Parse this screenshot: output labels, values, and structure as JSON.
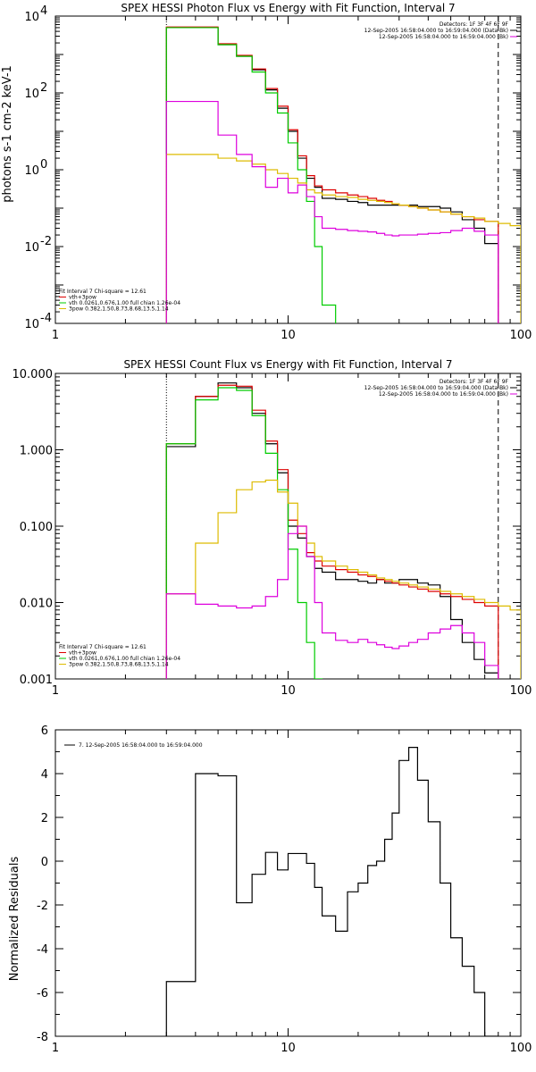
{
  "chart_data": [
    {
      "type": "line",
      "title": "SPEX HESSI Photon Flux vs Energy with Fit Function, Interval 7",
      "ylabel": "photons s-1 cm-2 keV-1",
      "xlabel": "",
      "xscale": "log",
      "yscale": "log",
      "xlim": [
        1,
        100
      ],
      "ylim": [
        0.0001,
        10000
      ],
      "xticks": [
        "1",
        "10",
        "100"
      ],
      "yticks": [
        {
          "base": "10",
          "exp": "-4"
        },
        {
          "base": "10",
          "exp": "-2"
        },
        {
          "base": "10",
          "exp": "0"
        },
        {
          "base": "10",
          "exp": "2"
        },
        {
          "base": "10",
          "exp": "4"
        }
      ],
      "legend_top": [
        "Detectors: 1F 3F 4F 6F 9F",
        "12-Sep-2005 16:58:04.000 to 16:59:04.000 (Data-Bk)",
        "12-Sep-2005 16:58:04.000 to 16:59:04.000 (Bk)"
      ],
      "legend_bottom": [
        "Fit Interval  7    Chi-square = 12.61",
        "vth+3pow",
        "vth 0.0261,0.676,1.00  full chian 1.26e-04",
        "3pow 0.382,1.50,8.73,8.68,13.5,1.14"
      ],
      "vlines": [
        3,
        80
      ],
      "series": [
        {
          "name": "Data-Bk",
          "color": "#000000",
          "edges": [
            3,
            4,
            5,
            6,
            7,
            8,
            9,
            10,
            11,
            12,
            13,
            14,
            16,
            18,
            20,
            22,
            24,
            26,
            28,
            30,
            33,
            36,
            40,
            45,
            50,
            56,
            63,
            70,
            80
          ],
          "values": [
            5000,
            5000,
            1800,
            900,
            400,
            120,
            40,
            10,
            2,
            0.6,
            0.35,
            0.18,
            0.17,
            0.15,
            0.14,
            0.12,
            0.12,
            0.12,
            0.12,
            0.12,
            0.12,
            0.11,
            0.11,
            0.1,
            0.08,
            0.05,
            0.03,
            0.012
          ]
        },
        {
          "name": "vth+3pow",
          "color": "#dd0000",
          "edges": [
            3,
            4,
            5,
            6,
            7,
            8,
            9,
            10,
            11,
            12,
            13,
            14,
            16,
            18,
            20,
            22,
            24,
            26,
            28,
            30,
            33,
            36,
            40,
            45,
            50,
            56,
            63,
            70,
            80
          ],
          "values": [
            5200,
            5200,
            1900,
            950,
            420,
            130,
            45,
            11,
            2.3,
            0.7,
            0.38,
            0.3,
            0.25,
            0.22,
            0.2,
            0.18,
            0.16,
            0.15,
            0.13,
            0.12,
            0.11,
            0.1,
            0.09,
            0.08,
            0.07,
            0.06,
            0.05,
            0.045
          ]
        },
        {
          "name": "vth",
          "color": "#00cc00",
          "edges": [
            3,
            4,
            5,
            6,
            7,
            8,
            9,
            10,
            11,
            12,
            13,
            14,
            16
          ],
          "values": [
            5000,
            5000,
            1800,
            900,
            350,
            100,
            30,
            5,
            1,
            0.15,
            0.01,
            0.0003
          ]
        },
        {
          "name": "3pow",
          "color": "#ddbb00",
          "edges": [
            3,
            4,
            5,
            6,
            7,
            8,
            9,
            10,
            11,
            12,
            13,
            14,
            16,
            18,
            20,
            22,
            24,
            26,
            28,
            30,
            33,
            36,
            40,
            45,
            50,
            56,
            63,
            70,
            80,
            90,
            100
          ],
          "values": [
            2.5,
            2.5,
            2.0,
            1.7,
            1.4,
            1.0,
            0.8,
            0.6,
            0.45,
            0.3,
            0.25,
            0.22,
            0.2,
            0.19,
            0.17,
            0.16,
            0.15,
            0.14,
            0.13,
            0.12,
            0.11,
            0.1,
            0.09,
            0.08,
            0.07,
            0.06,
            0.055,
            0.045,
            0.04,
            0.035
          ]
        },
        {
          "name": "Bk",
          "color": "#dd00dd",
          "edges": [
            3,
            4,
            5,
            6,
            7,
            8,
            9,
            10,
            11,
            12,
            13,
            14,
            16,
            18,
            20,
            22,
            24,
            26,
            28,
            30,
            33,
            36,
            40,
            45,
            50,
            56,
            63,
            70,
            80
          ],
          "values": [
            60,
            60,
            8,
            2.5,
            1.2,
            0.35,
            0.6,
            0.25,
            0.4,
            0.2,
            0.06,
            0.03,
            0.028,
            0.026,
            0.025,
            0.024,
            0.022,
            0.02,
            0.019,
            0.02,
            0.02,
            0.021,
            0.022,
            0.023,
            0.026,
            0.03,
            0.025,
            0.02
          ]
        }
      ]
    },
    {
      "type": "line",
      "title": "SPEX HESSI Count Flux vs Energy with Fit Function, Interval 7",
      "ylabel": "",
      "xlabel": "",
      "xscale": "log",
      "yscale": "log",
      "xlim": [
        1,
        100
      ],
      "ylim": [
        0.001,
        10
      ],
      "xticks": [
        "1",
        "10",
        "100"
      ],
      "yticks": [
        "0.001",
        "0.010",
        "0.100",
        "1.000",
        "10.000"
      ],
      "legend_top": [
        "Detectors: 1F 3F 4F 6F 9F",
        "12-Sep-2005 16:58:04.000 to 16:59:04.000 (Data-Bk)",
        "12-Sep-2005 16:58:04.000 to 16:59:04.000 (Bk)"
      ],
      "legend_bottom": [
        "Fit Interval  7    Chi-square = 12.61",
        "vth+3pow",
        "vth 0.0261,0.676,1.00  full chian 1.26e-04",
        "3pow 0.382,1.50,8.73,8.68,13.5,1.14"
      ],
      "vlines": [
        3,
        80
      ],
      "series": [
        {
          "name": "Data-Bk",
          "color": "#000000",
          "edges": [
            3,
            4,
            5,
            6,
            7,
            8,
            9,
            10,
            11,
            12,
            13,
            14,
            16,
            18,
            20,
            22,
            24,
            26,
            28,
            30,
            33,
            36,
            40,
            45,
            50,
            56,
            63,
            70,
            80
          ],
          "values": [
            1.1,
            5.0,
            7.5,
            6.5,
            3.0,
            1.2,
            0.5,
            0.1,
            0.07,
            0.04,
            0.028,
            0.025,
            0.02,
            0.02,
            0.019,
            0.018,
            0.02,
            0.018,
            0.018,
            0.02,
            0.02,
            0.018,
            0.017,
            0.012,
            0.006,
            0.003,
            0.0018,
            0.0012
          ]
        },
        {
          "name": "vth+3pow",
          "color": "#dd0000",
          "edges": [
            3,
            4,
            5,
            6,
            7,
            8,
            9,
            10,
            11,
            12,
            13,
            14,
            16,
            18,
            20,
            22,
            24,
            26,
            28,
            30,
            33,
            36,
            40,
            45,
            50,
            56,
            63,
            70,
            80
          ],
          "values": [
            1.2,
            5.0,
            7.0,
            6.8,
            3.3,
            1.3,
            0.55,
            0.12,
            0.08,
            0.045,
            0.035,
            0.03,
            0.027,
            0.025,
            0.023,
            0.022,
            0.02,
            0.019,
            0.018,
            0.017,
            0.016,
            0.015,
            0.014,
            0.013,
            0.012,
            0.011,
            0.01,
            0.009
          ]
        },
        {
          "name": "vth",
          "color": "#00cc00",
          "edges": [
            3,
            4,
            5,
            6,
            7,
            8,
            9,
            10,
            11,
            12,
            13,
            14
          ],
          "values": [
            1.2,
            4.5,
            6.5,
            6.0,
            2.8,
            0.9,
            0.3,
            0.05,
            0.01,
            0.003,
            0.001
          ]
        },
        {
          "name": "3pow",
          "color": "#ddbb00",
          "edges": [
            3,
            4,
            5,
            6,
            7,
            8,
            9,
            10,
            11,
            12,
            13,
            14,
            16,
            18,
            20,
            22,
            24,
            26,
            28,
            30,
            33,
            36,
            40,
            45,
            50,
            56,
            63,
            70,
            80,
            90,
            100
          ],
          "values": [
            0.013,
            0.06,
            0.15,
            0.3,
            0.38,
            0.4,
            0.28,
            0.2,
            0.1,
            0.06,
            0.04,
            0.035,
            0.03,
            0.027,
            0.025,
            0.023,
            0.021,
            0.02,
            0.019,
            0.018,
            0.017,
            0.016,
            0.015,
            0.014,
            0.013,
            0.012,
            0.011,
            0.01,
            0.009,
            0.008
          ]
        },
        {
          "name": "Bk",
          "color": "#dd00dd",
          "edges": [
            3,
            4,
            5,
            6,
            7,
            8,
            9,
            10,
            11,
            12,
            13,
            14,
            16,
            18,
            20,
            22,
            24,
            26,
            28,
            30,
            33,
            36,
            40,
            45,
            50,
            56,
            63,
            70,
            80
          ],
          "values": [
            0.013,
            0.0095,
            0.009,
            0.0085,
            0.009,
            0.012,
            0.02,
            0.08,
            0.1,
            0.04,
            0.01,
            0.004,
            0.0032,
            0.003,
            0.0033,
            0.003,
            0.0028,
            0.0026,
            0.0025,
            0.0027,
            0.003,
            0.0033,
            0.004,
            0.0045,
            0.005,
            0.004,
            0.003,
            0.0015
          ]
        }
      ]
    },
    {
      "type": "line",
      "title": "",
      "ylabel": "Normalized Residuals",
      "xlabel": "",
      "xscale": "log",
      "yscale": "linear",
      "xlim": [
        1,
        100
      ],
      "ylim": [
        -8,
        6
      ],
      "xticks": [
        "1",
        "10",
        "100"
      ],
      "yticks": [
        "-8",
        "-6",
        "-4",
        "-2",
        "0",
        "2",
        "4",
        "6"
      ],
      "legend_top": [
        "7. 12-Sep-2005 16:58:04.000 to 16:59:04.000"
      ],
      "series": [
        {
          "name": "7. 12-Sep-2005 16:58:04.000 to 16:59:04.000",
          "color": "#000000",
          "edges": [
            3,
            4,
            5,
            6,
            7,
            8,
            9,
            10,
            11,
            12,
            13,
            14,
            16,
            18,
            20,
            22,
            24,
            26,
            28,
            30,
            33,
            36,
            40,
            45,
            50,
            56,
            63,
            70,
            80
          ],
          "values": [
            -5.5,
            4.0,
            3.9,
            -1.9,
            -0.6,
            0.4,
            -0.4,
            0.35,
            0.35,
            -0.1,
            -1.2,
            -2.5,
            -3.2,
            -1.4,
            -1.0,
            -0.2,
            0.0,
            1.0,
            2.2,
            4.6,
            5.2,
            3.7,
            1.8,
            -1.0,
            -3.5,
            -4.8,
            -6.0,
            -8.0
          ]
        }
      ]
    }
  ],
  "colors": {
    "frame": "#000000",
    "data": "#000000",
    "sum": "#dd0000",
    "thermal": "#00cc00",
    "powerlaw": "#ddbb00",
    "background": "#dd00dd"
  }
}
